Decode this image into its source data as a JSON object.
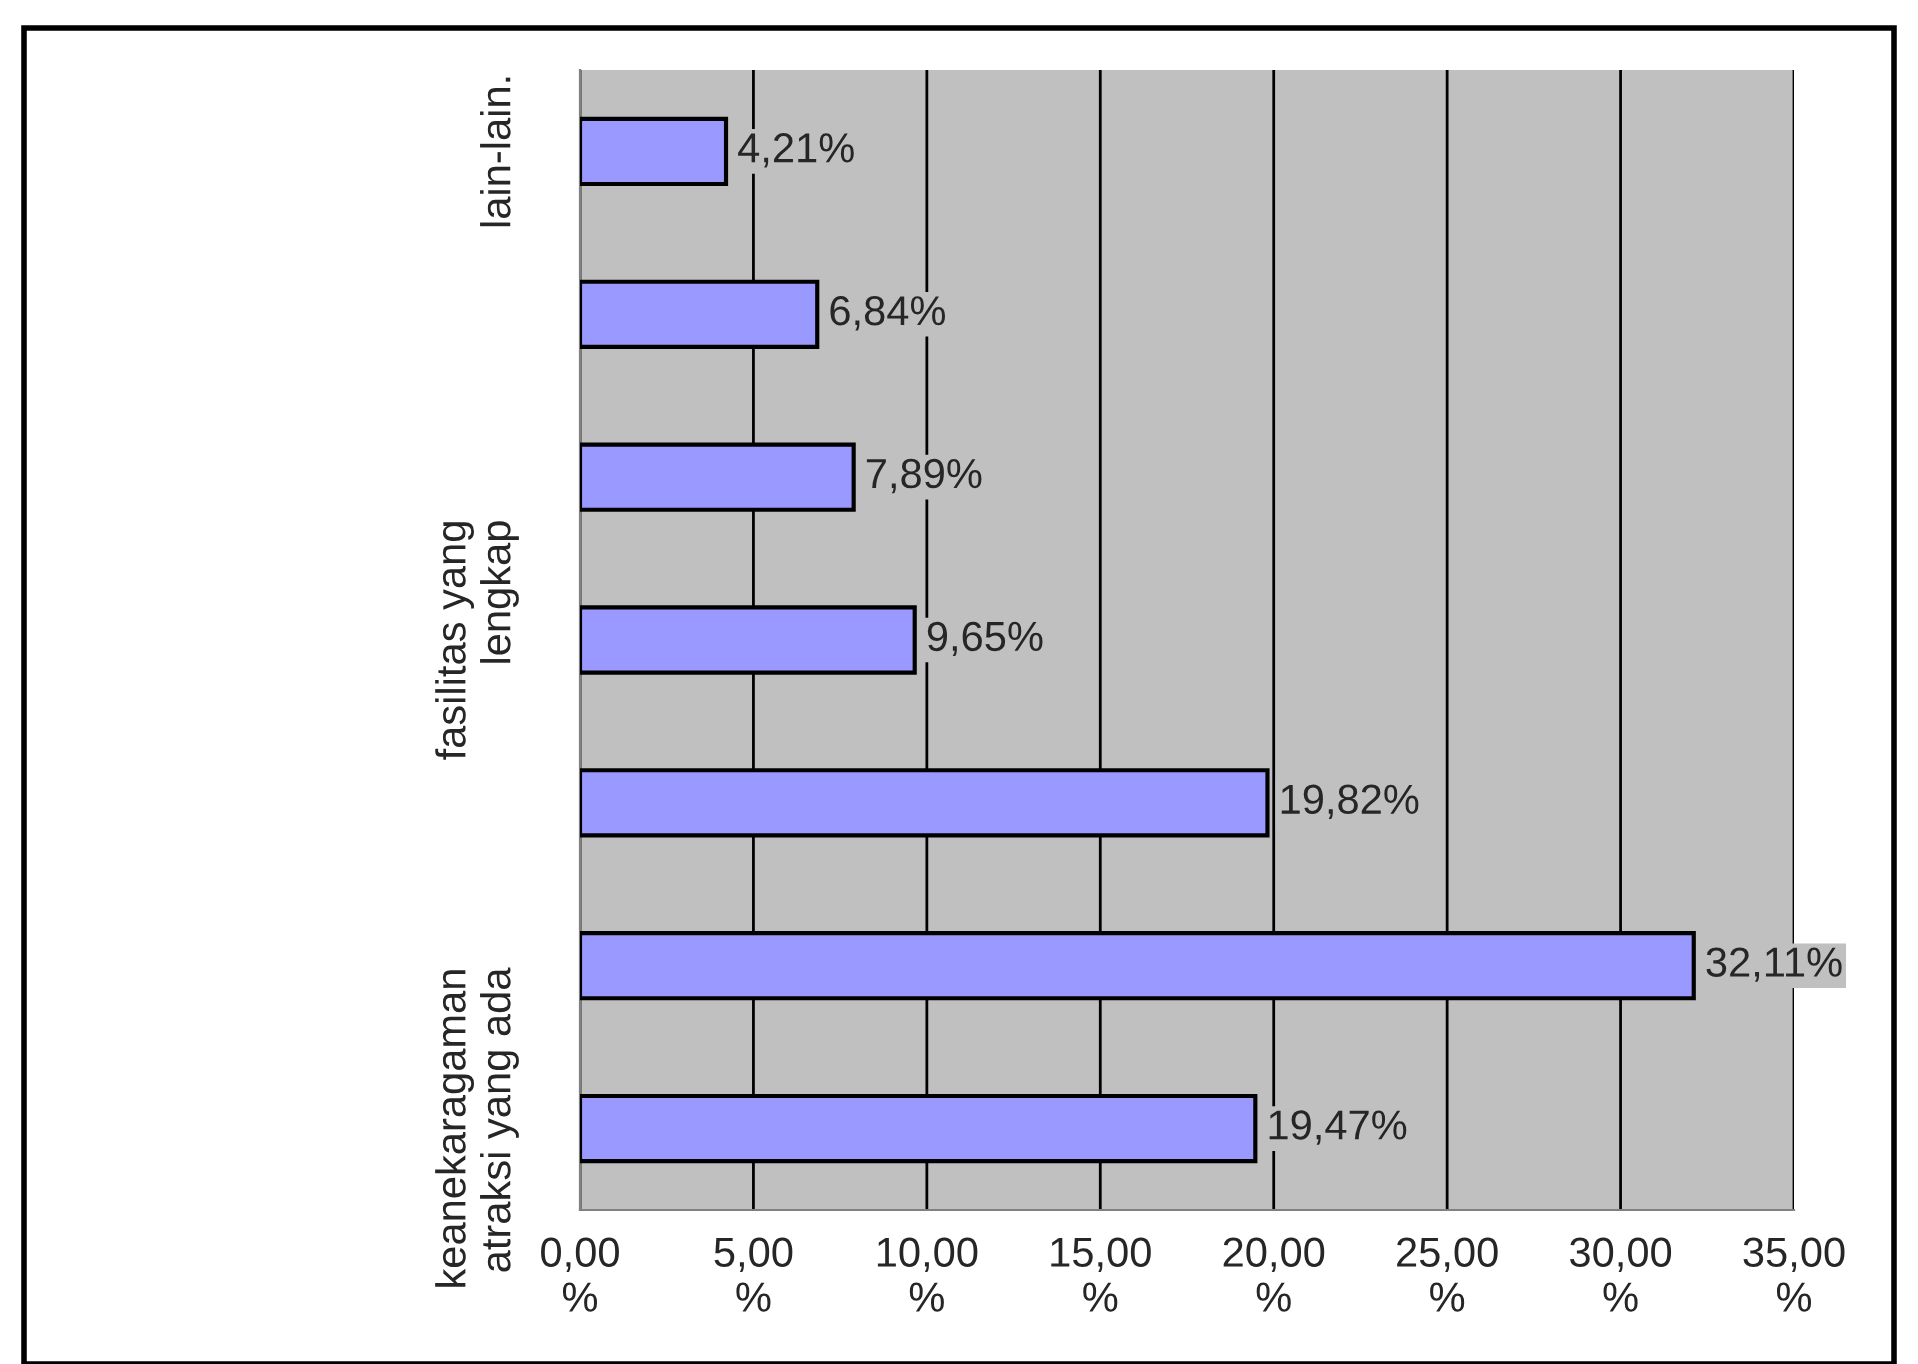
{
  "chart_data": {
    "type": "bar",
    "orientation": "horizontal",
    "categories": [
      "lain-lain.",
      null,
      null,
      "fasilitas yang\nlengkap",
      null,
      null,
      "keanekaragaman\natraksi yang ada"
    ],
    "values": [
      4.21,
      6.84,
      7.89,
      9.65,
      19.82,
      32.11,
      19.47
    ],
    "value_labels": [
      "4,21%",
      "6,84%",
      "7,89%",
      "9,65%",
      "19,82%",
      "32,11%",
      "19,47%"
    ],
    "color": "#9999ff",
    "xlim": [
      0,
      35
    ],
    "xticks": [
      {
        "value": 0,
        "label": "0,00\n%"
      },
      {
        "value": 5,
        "label": "5,00\n%"
      },
      {
        "value": 10,
        "label": "10,00\n%"
      },
      {
        "value": 15,
        "label": "15,00\n%"
      },
      {
        "value": 20,
        "label": "20,00\n%"
      },
      {
        "value": 25,
        "label": "25,00\n%"
      },
      {
        "value": 30,
        "label": "30,00\n%"
      },
      {
        "value": 35,
        "label": "35,00\n%"
      }
    ],
    "grid": "x",
    "legend": false
  }
}
